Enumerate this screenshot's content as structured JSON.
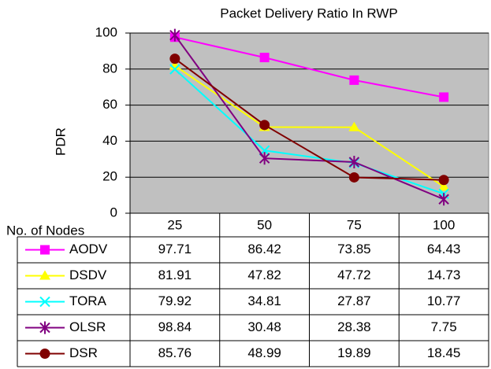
{
  "chart_data": {
    "type": "line",
    "title": "Packet Delivery Ratio In RWP",
    "ylabel": "PDR",
    "xlabel": "No. of Nodes",
    "categories": [
      "25",
      "50",
      "75",
      "100"
    ],
    "series": [
      {
        "name": "AODV",
        "color": "#ff00ff",
        "marker": "square",
        "values": [
          97.71,
          86.42,
          73.85,
          64.43
        ]
      },
      {
        "name": "DSDV",
        "color": "#ffff00",
        "marker": "triangle",
        "values": [
          81.91,
          47.82,
          47.72,
          14.73
        ]
      },
      {
        "name": "TORA",
        "color": "#00ffff",
        "marker": "x",
        "values": [
          79.92,
          34.81,
          27.87,
          10.77
        ]
      },
      {
        "name": "OLSR",
        "color": "#800080",
        "marker": "star",
        "values": [
          98.84,
          30.48,
          28.38,
          7.75
        ]
      },
      {
        "name": "DSR",
        "color": "#800000",
        "marker": "circle",
        "values": [
          85.76,
          48.99,
          19.89,
          18.45
        ]
      }
    ],
    "ylim": [
      0,
      100
    ],
    "yticks": [
      0,
      20,
      40,
      60,
      80,
      100
    ],
    "grid": true,
    "plot_background": "#c0c0c0"
  }
}
